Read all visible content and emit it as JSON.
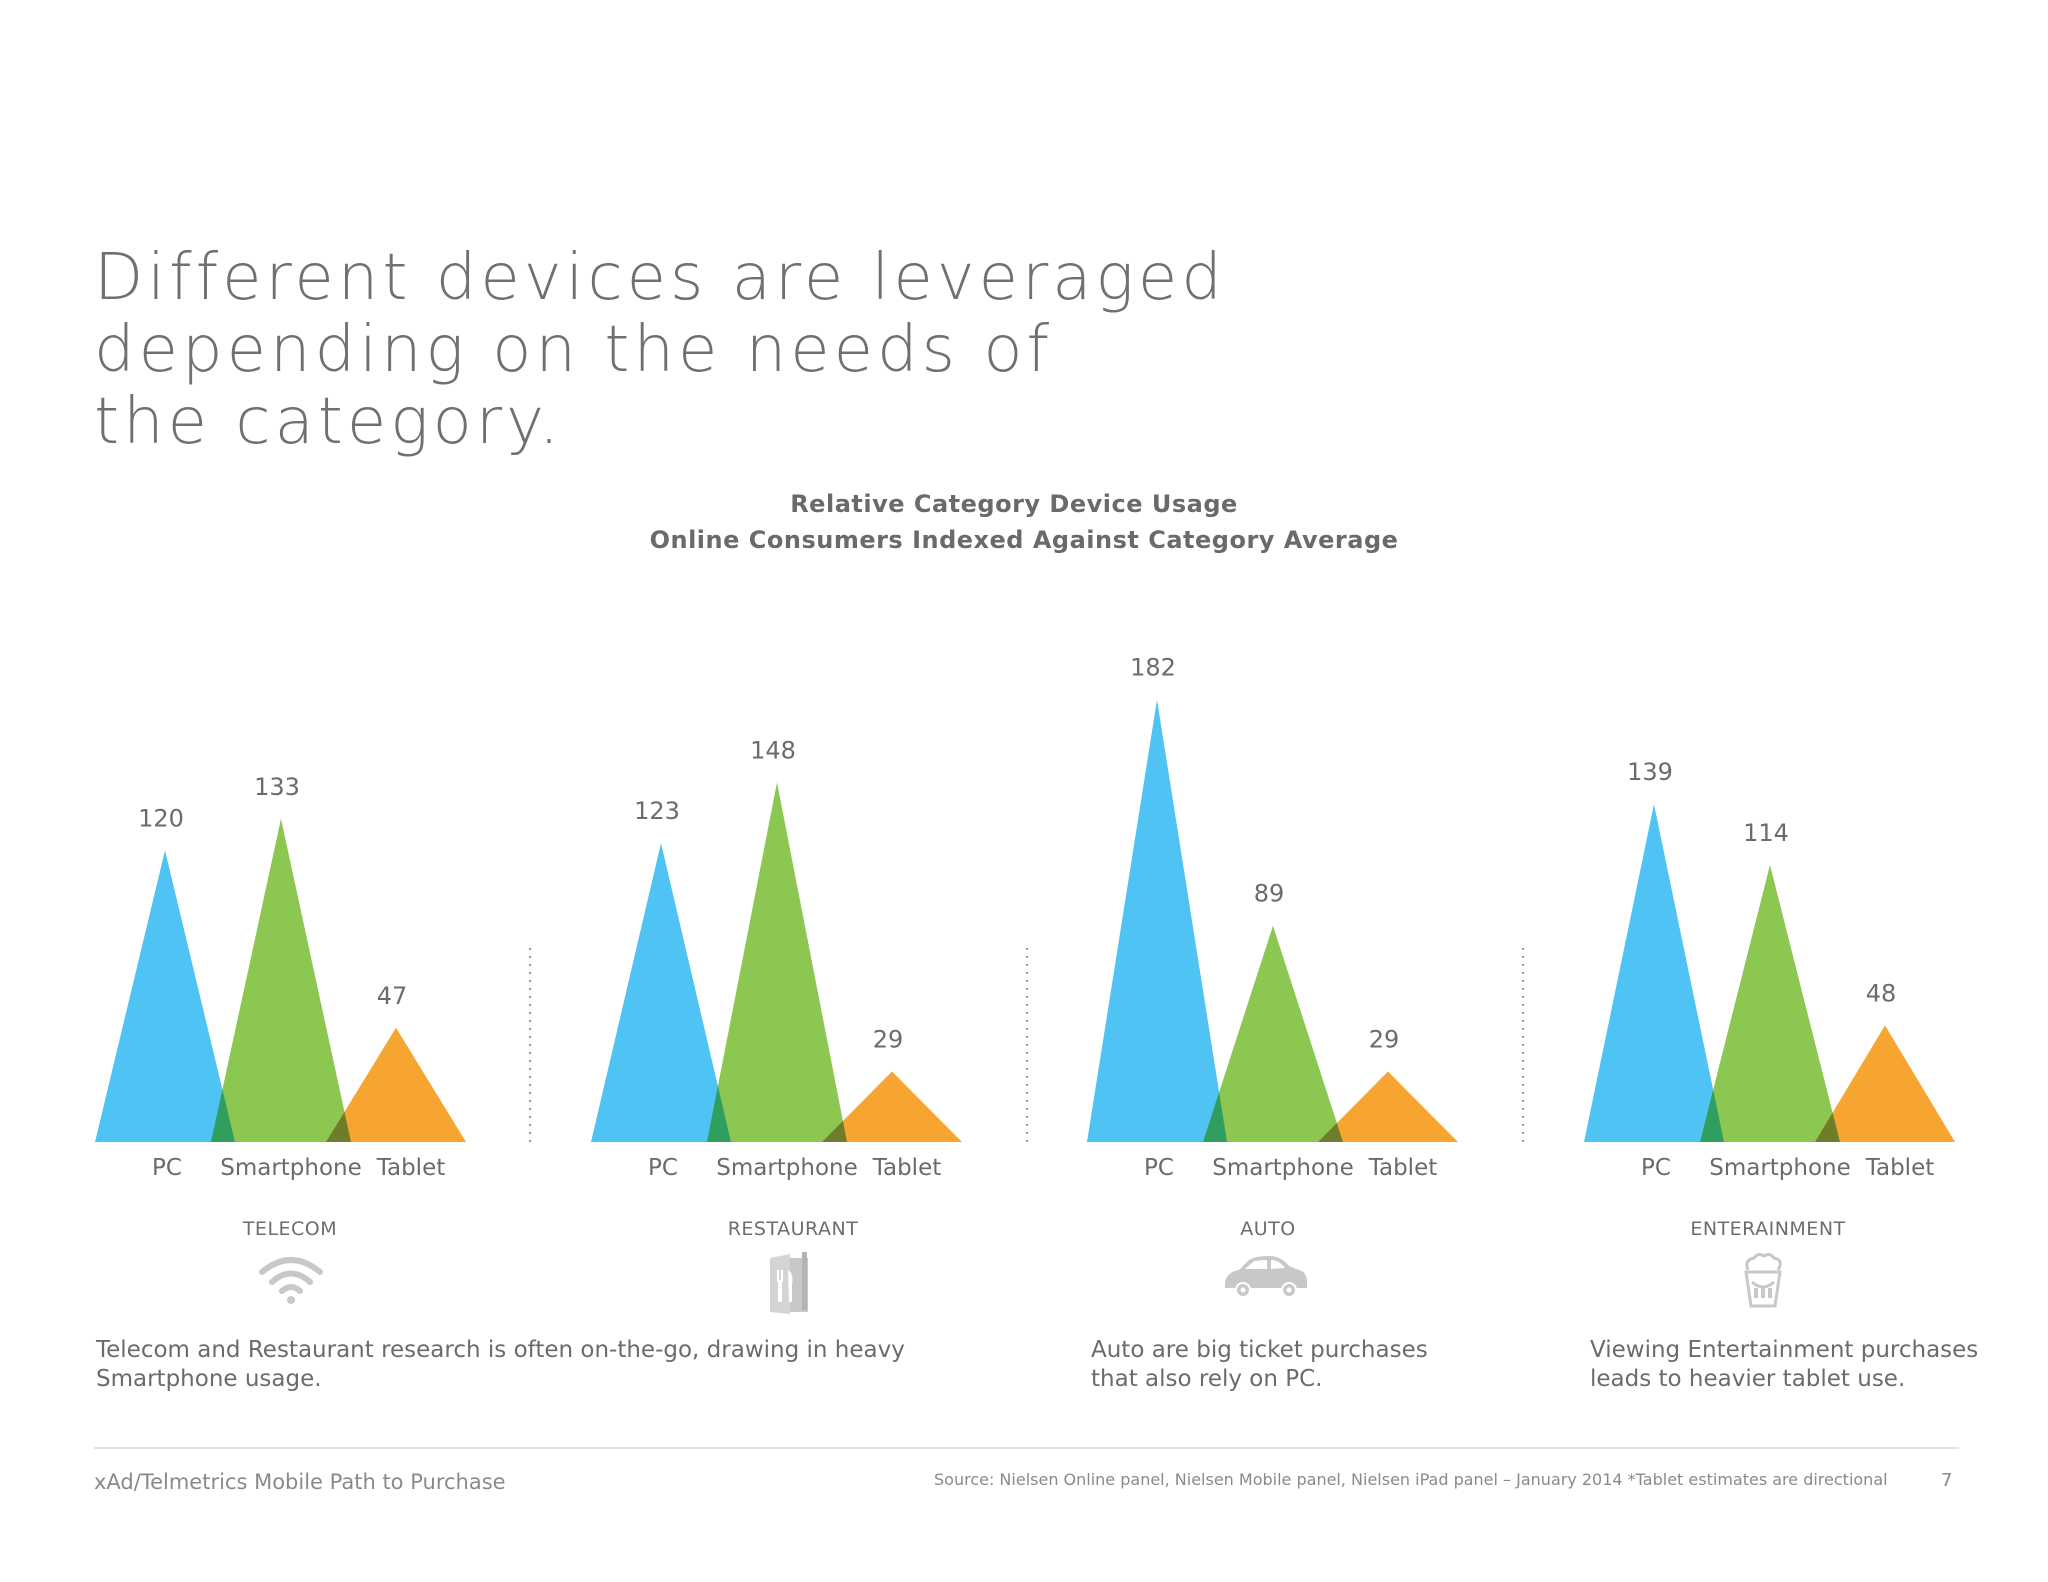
{
  "headline": [
    "Different devices are leveraged",
    "depending on the needs of",
    "the category."
  ],
  "chart_title": [
    "Relative Category Device Usage",
    "Online Consumers Indexed Against Category Average"
  ],
  "colors": {
    "pc": "#4fc3f3",
    "smartphone": "#8cc751",
    "tablet": "#f6a531",
    "text": "#6b6b6b",
    "divider": "#9a9a9a"
  },
  "chart_data": {
    "type": "bar",
    "title": "Relative Category Device Usage",
    "subtitle": "Online Consumers Indexed Against Category Average",
    "categories": [
      "PC",
      "Smartphone",
      "Tablet"
    ],
    "panels": [
      {
        "name": "TELECOM",
        "icon": "wifi-icon",
        "values": [
          120,
          133,
          47
        ]
      },
      {
        "name": "RESTAURANT",
        "icon": "restaurant-menu-icon",
        "values": [
          123,
          148,
          29
        ]
      },
      {
        "name": "AUTO",
        "icon": "car-icon",
        "values": [
          182,
          89,
          29
        ]
      },
      {
        "name": "ENTERAINMENT",
        "icon": "popcorn-icon",
        "values": [
          139,
          114,
          48
        ]
      }
    ]
  },
  "notes": [
    [
      "Telecom and Restaurant research is often on-the-go, drawing in heavy",
      "Smartphone usage."
    ],
    [
      "Auto are big ticket purchases",
      "that also rely on PC."
    ],
    [
      "Viewing Entertainment purchases",
      "leads to heavier tablet use."
    ]
  ],
  "footer": {
    "left": "xAd/Telmetrics Mobile Path to Purchase",
    "source": "Source: Nielsen Online panel, Nielsen Mobile panel, Nielsen iPad panel – January 2014   *Tablet estimates are directional",
    "page": "7"
  }
}
